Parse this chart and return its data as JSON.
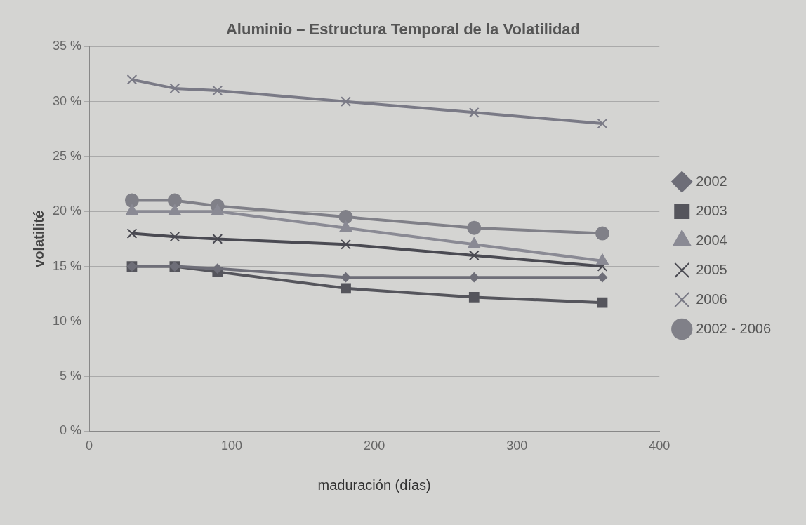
{
  "chart_data": {
    "type": "line",
    "title": "Aluminio – Estructura Temporal de la Volatilidad",
    "xlabel": "maduración (días)",
    "ylabel": "volatilité",
    "x": [
      30,
      60,
      90,
      180,
      270,
      360
    ],
    "series": [
      {
        "name": "2002",
        "color": "#6e6e78",
        "marker": "diamond",
        "values": [
          15,
          15,
          14.8,
          14,
          14,
          14
        ]
      },
      {
        "name": "2003",
        "color": "#55555c",
        "marker": "square",
        "values": [
          15,
          15,
          14.5,
          13,
          12.2,
          11.7
        ]
      },
      {
        "name": "2004",
        "color": "#8a8a94",
        "marker": "triangle",
        "values": [
          20,
          20,
          20,
          18.5,
          17,
          15.5
        ]
      },
      {
        "name": "2005",
        "color": "#4a4a52",
        "marker": "cross",
        "values": [
          18,
          17.7,
          17.5,
          17,
          16,
          15
        ]
      },
      {
        "name": "2006",
        "color": "#7a7a86",
        "marker": "cross",
        "values": [
          32,
          31.2,
          31,
          30,
          29,
          28
        ]
      },
      {
        "name": "2002 - 2006",
        "color": "#808088",
        "marker": "circle",
        "values": [
          21,
          21,
          20.5,
          19.5,
          18.5,
          18
        ]
      }
    ],
    "xlim": [
      0,
      400
    ],
    "xticks": [
      0,
      100,
      200,
      300,
      400
    ],
    "ylim": [
      0,
      35
    ],
    "yticks": [
      {
        "value": 0,
        "label": "0 %"
      },
      {
        "value": 5,
        "label": "5 %"
      },
      {
        "value": 10,
        "label": "10 %"
      },
      {
        "value": 15,
        "label": "15 %"
      },
      {
        "value": 20,
        "label": "20 %"
      },
      {
        "value": 25,
        "label": "25 %"
      },
      {
        "value": 30,
        "label": "30 %"
      },
      {
        "value": 35,
        "label": "35 %"
      }
    ],
    "grid": "y",
    "legend": "right"
  }
}
